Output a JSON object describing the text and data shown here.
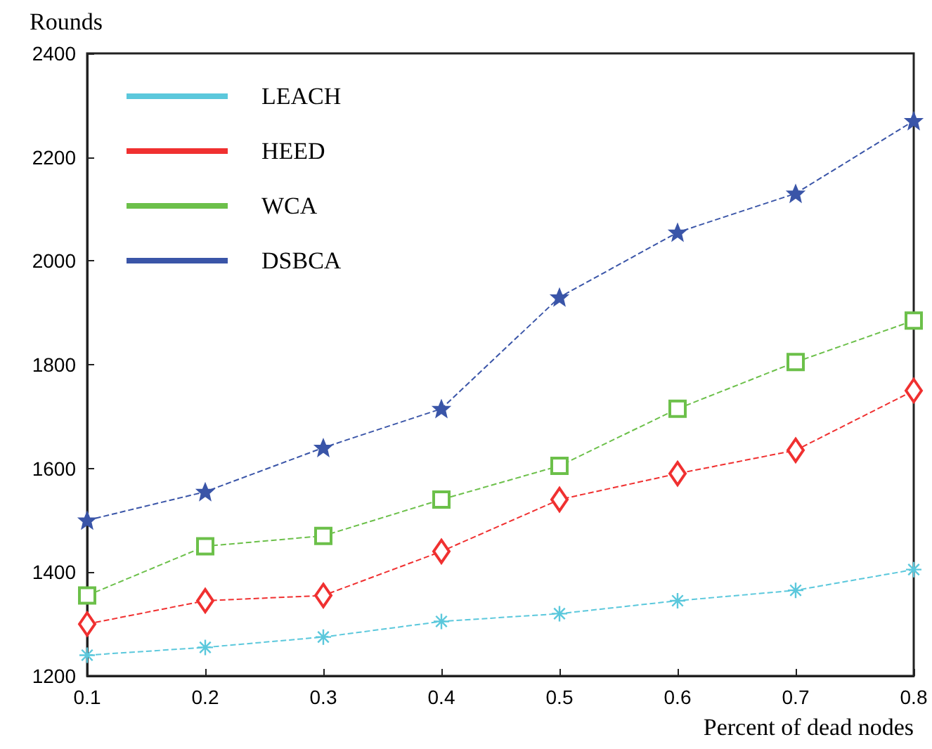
{
  "chart_data": {
    "type": "line",
    "xlabel": "Percent of dead nodes",
    "ylabel": "Rounds",
    "x": [
      0.1,
      0.2,
      0.3,
      0.4,
      0.5,
      0.6,
      0.7,
      0.8
    ],
    "series": [
      {
        "name": "LEACH",
        "color": "#5bc8dc",
        "marker": "cross",
        "values": [
          1240,
          1255,
          1275,
          1305,
          1320,
          1345,
          1365,
          1405
        ]
      },
      {
        "name": "HEED",
        "color": "#f03030",
        "marker": "diamond",
        "values": [
          1300,
          1345,
          1355,
          1440,
          1540,
          1590,
          1635,
          1750
        ]
      },
      {
        "name": "WCA",
        "color": "#6cc04a",
        "marker": "square",
        "values": [
          1355,
          1450,
          1470,
          1540,
          1605,
          1715,
          1805,
          1885
        ]
      },
      {
        "name": "DSBCA",
        "color": "#3a55a8",
        "marker": "star",
        "values": [
          1500,
          1555,
          1640,
          1715,
          1930,
          2055,
          2130,
          2270
        ]
      }
    ],
    "xlim": [
      0.1,
      0.8
    ],
    "xticks": [
      0.1,
      0.2,
      0.3,
      0.4,
      0.5,
      0.6,
      0.7,
      0.8
    ],
    "ylim": [
      1200,
      2400
    ],
    "yticks": [
      1200,
      1400,
      1600,
      1800,
      2000,
      2200,
      2400
    ],
    "grid": false,
    "legend": "top left",
    "line_style": "dashed"
  }
}
